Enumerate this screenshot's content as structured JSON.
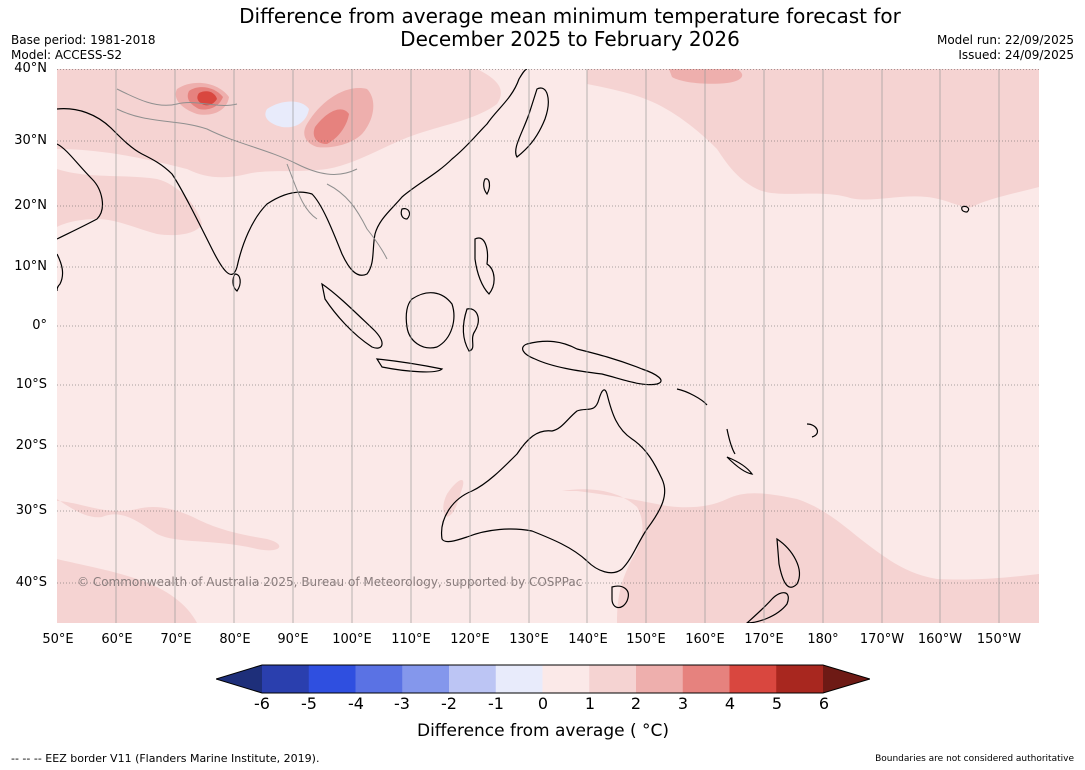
{
  "title": {
    "line1": "Difference from average mean minimum temperature forecast for",
    "line2": "December 2025 to February 2026"
  },
  "meta_left": {
    "base_period": "Base period: 1981-2018",
    "model": "Model: ACCESS-S2"
  },
  "meta_right": {
    "model_run": "Model run: 22/09/2025",
    "issued": "Issued: 24/09/2025"
  },
  "latitude_labels": [
    "40°N",
    "30°N",
    "20°N",
    "10°N",
    "0°",
    "10°S",
    "20°S",
    "30°S",
    "40°S"
  ],
  "longitude_labels": [
    "50°E",
    "60°E",
    "70°E",
    "80°E",
    "90°E",
    "100°E",
    "110°E",
    "120°E",
    "130°E",
    "140°E",
    "150°E",
    "160°E",
    "170°E",
    "180°",
    "170°W",
    "160°W",
    "150°W"
  ],
  "copyright": "© Commonwealth of Australia 2025, Bureau of Meteorology, supported by COSPPac",
  "legend": {
    "ticks": [
      "-6",
      "-5",
      "-4",
      "-3",
      "-2",
      "-1",
      "0",
      "1",
      "2",
      "3",
      "4",
      "5",
      "6"
    ],
    "colors": [
      "#1e2f7a",
      "#2a3fae",
      "#2f4fe0",
      "#5a72e4",
      "#8497ec",
      "#bcc5f4",
      "#e8ebfb",
      "#fbe9e8",
      "#f5d3d2",
      "#eeafad",
      "#e6827e",
      "#d9473f",
      "#a8271f",
      "#6e1a15"
    ],
    "title": "Difference from average ( °C)"
  },
  "footer": {
    "eez": "--  --  -- EEZ border V11 (Flanders Marine Institute, 2019).",
    "disclaimer": "Boundaries are not considered authoritative"
  },
  "map_colors": {
    "base": "#fbe9e8",
    "light": "#f5d3d2",
    "medium": "#eeafad",
    "strong": "#e6827e",
    "hot": "#d9473f",
    "cool": "#e8ebfb"
  }
}
